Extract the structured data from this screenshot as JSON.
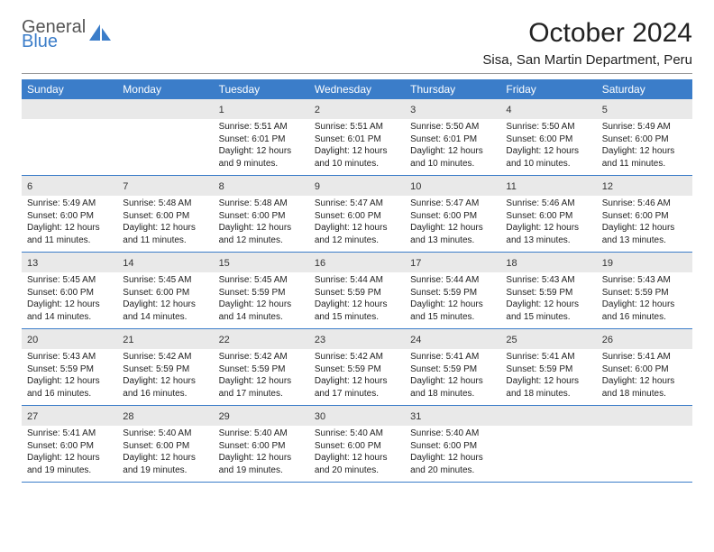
{
  "brand": {
    "word1": "General",
    "word2": "Blue",
    "logo_color": "#3b7dc9",
    "text_color": "#555555"
  },
  "header": {
    "title": "October 2024",
    "location": "Sisa, San Martin Department, Peru"
  },
  "style": {
    "header_bg": "#3b7dc9",
    "header_fg": "#ffffff",
    "daynum_bg": "#e9e9e9",
    "week_border": "#3b7dc9",
    "body_font_size": 10,
    "daynum_font_size": 11,
    "header_font_size": 12
  },
  "day_names": [
    "Sunday",
    "Monday",
    "Tuesday",
    "Wednesday",
    "Thursday",
    "Friday",
    "Saturday"
  ],
  "weeks": [
    [
      {
        "empty": true
      },
      {
        "empty": true
      },
      {
        "n": "1",
        "sunrise": "Sunrise: 5:51 AM",
        "sunset": "Sunset: 6:01 PM",
        "day1": "Daylight: 12 hours",
        "day2": "and 9 minutes."
      },
      {
        "n": "2",
        "sunrise": "Sunrise: 5:51 AM",
        "sunset": "Sunset: 6:01 PM",
        "day1": "Daylight: 12 hours",
        "day2": "and 10 minutes."
      },
      {
        "n": "3",
        "sunrise": "Sunrise: 5:50 AM",
        "sunset": "Sunset: 6:01 PM",
        "day1": "Daylight: 12 hours",
        "day2": "and 10 minutes."
      },
      {
        "n": "4",
        "sunrise": "Sunrise: 5:50 AM",
        "sunset": "Sunset: 6:00 PM",
        "day1": "Daylight: 12 hours",
        "day2": "and 10 minutes."
      },
      {
        "n": "5",
        "sunrise": "Sunrise: 5:49 AM",
        "sunset": "Sunset: 6:00 PM",
        "day1": "Daylight: 12 hours",
        "day2": "and 11 minutes."
      }
    ],
    [
      {
        "n": "6",
        "sunrise": "Sunrise: 5:49 AM",
        "sunset": "Sunset: 6:00 PM",
        "day1": "Daylight: 12 hours",
        "day2": "and 11 minutes."
      },
      {
        "n": "7",
        "sunrise": "Sunrise: 5:48 AM",
        "sunset": "Sunset: 6:00 PM",
        "day1": "Daylight: 12 hours",
        "day2": "and 11 minutes."
      },
      {
        "n": "8",
        "sunrise": "Sunrise: 5:48 AM",
        "sunset": "Sunset: 6:00 PM",
        "day1": "Daylight: 12 hours",
        "day2": "and 12 minutes."
      },
      {
        "n": "9",
        "sunrise": "Sunrise: 5:47 AM",
        "sunset": "Sunset: 6:00 PM",
        "day1": "Daylight: 12 hours",
        "day2": "and 12 minutes."
      },
      {
        "n": "10",
        "sunrise": "Sunrise: 5:47 AM",
        "sunset": "Sunset: 6:00 PM",
        "day1": "Daylight: 12 hours",
        "day2": "and 13 minutes."
      },
      {
        "n": "11",
        "sunrise": "Sunrise: 5:46 AM",
        "sunset": "Sunset: 6:00 PM",
        "day1": "Daylight: 12 hours",
        "day2": "and 13 minutes."
      },
      {
        "n": "12",
        "sunrise": "Sunrise: 5:46 AM",
        "sunset": "Sunset: 6:00 PM",
        "day1": "Daylight: 12 hours",
        "day2": "and 13 minutes."
      }
    ],
    [
      {
        "n": "13",
        "sunrise": "Sunrise: 5:45 AM",
        "sunset": "Sunset: 6:00 PM",
        "day1": "Daylight: 12 hours",
        "day2": "and 14 minutes."
      },
      {
        "n": "14",
        "sunrise": "Sunrise: 5:45 AM",
        "sunset": "Sunset: 6:00 PM",
        "day1": "Daylight: 12 hours",
        "day2": "and 14 minutes."
      },
      {
        "n": "15",
        "sunrise": "Sunrise: 5:45 AM",
        "sunset": "Sunset: 5:59 PM",
        "day1": "Daylight: 12 hours",
        "day2": "and 14 minutes."
      },
      {
        "n": "16",
        "sunrise": "Sunrise: 5:44 AM",
        "sunset": "Sunset: 5:59 PM",
        "day1": "Daylight: 12 hours",
        "day2": "and 15 minutes."
      },
      {
        "n": "17",
        "sunrise": "Sunrise: 5:44 AM",
        "sunset": "Sunset: 5:59 PM",
        "day1": "Daylight: 12 hours",
        "day2": "and 15 minutes."
      },
      {
        "n": "18",
        "sunrise": "Sunrise: 5:43 AM",
        "sunset": "Sunset: 5:59 PM",
        "day1": "Daylight: 12 hours",
        "day2": "and 15 minutes."
      },
      {
        "n": "19",
        "sunrise": "Sunrise: 5:43 AM",
        "sunset": "Sunset: 5:59 PM",
        "day1": "Daylight: 12 hours",
        "day2": "and 16 minutes."
      }
    ],
    [
      {
        "n": "20",
        "sunrise": "Sunrise: 5:43 AM",
        "sunset": "Sunset: 5:59 PM",
        "day1": "Daylight: 12 hours",
        "day2": "and 16 minutes."
      },
      {
        "n": "21",
        "sunrise": "Sunrise: 5:42 AM",
        "sunset": "Sunset: 5:59 PM",
        "day1": "Daylight: 12 hours",
        "day2": "and 16 minutes."
      },
      {
        "n": "22",
        "sunrise": "Sunrise: 5:42 AM",
        "sunset": "Sunset: 5:59 PM",
        "day1": "Daylight: 12 hours",
        "day2": "and 17 minutes."
      },
      {
        "n": "23",
        "sunrise": "Sunrise: 5:42 AM",
        "sunset": "Sunset: 5:59 PM",
        "day1": "Daylight: 12 hours",
        "day2": "and 17 minutes."
      },
      {
        "n": "24",
        "sunrise": "Sunrise: 5:41 AM",
        "sunset": "Sunset: 5:59 PM",
        "day1": "Daylight: 12 hours",
        "day2": "and 18 minutes."
      },
      {
        "n": "25",
        "sunrise": "Sunrise: 5:41 AM",
        "sunset": "Sunset: 5:59 PM",
        "day1": "Daylight: 12 hours",
        "day2": "and 18 minutes."
      },
      {
        "n": "26",
        "sunrise": "Sunrise: 5:41 AM",
        "sunset": "Sunset: 6:00 PM",
        "day1": "Daylight: 12 hours",
        "day2": "and 18 minutes."
      }
    ],
    [
      {
        "n": "27",
        "sunrise": "Sunrise: 5:41 AM",
        "sunset": "Sunset: 6:00 PM",
        "day1": "Daylight: 12 hours",
        "day2": "and 19 minutes."
      },
      {
        "n": "28",
        "sunrise": "Sunrise: 5:40 AM",
        "sunset": "Sunset: 6:00 PM",
        "day1": "Daylight: 12 hours",
        "day2": "and 19 minutes."
      },
      {
        "n": "29",
        "sunrise": "Sunrise: 5:40 AM",
        "sunset": "Sunset: 6:00 PM",
        "day1": "Daylight: 12 hours",
        "day2": "and 19 minutes."
      },
      {
        "n": "30",
        "sunrise": "Sunrise: 5:40 AM",
        "sunset": "Sunset: 6:00 PM",
        "day1": "Daylight: 12 hours",
        "day2": "and 20 minutes."
      },
      {
        "n": "31",
        "sunrise": "Sunrise: 5:40 AM",
        "sunset": "Sunset: 6:00 PM",
        "day1": "Daylight: 12 hours",
        "day2": "and 20 minutes."
      },
      {
        "empty": true
      },
      {
        "empty": true
      }
    ]
  ]
}
